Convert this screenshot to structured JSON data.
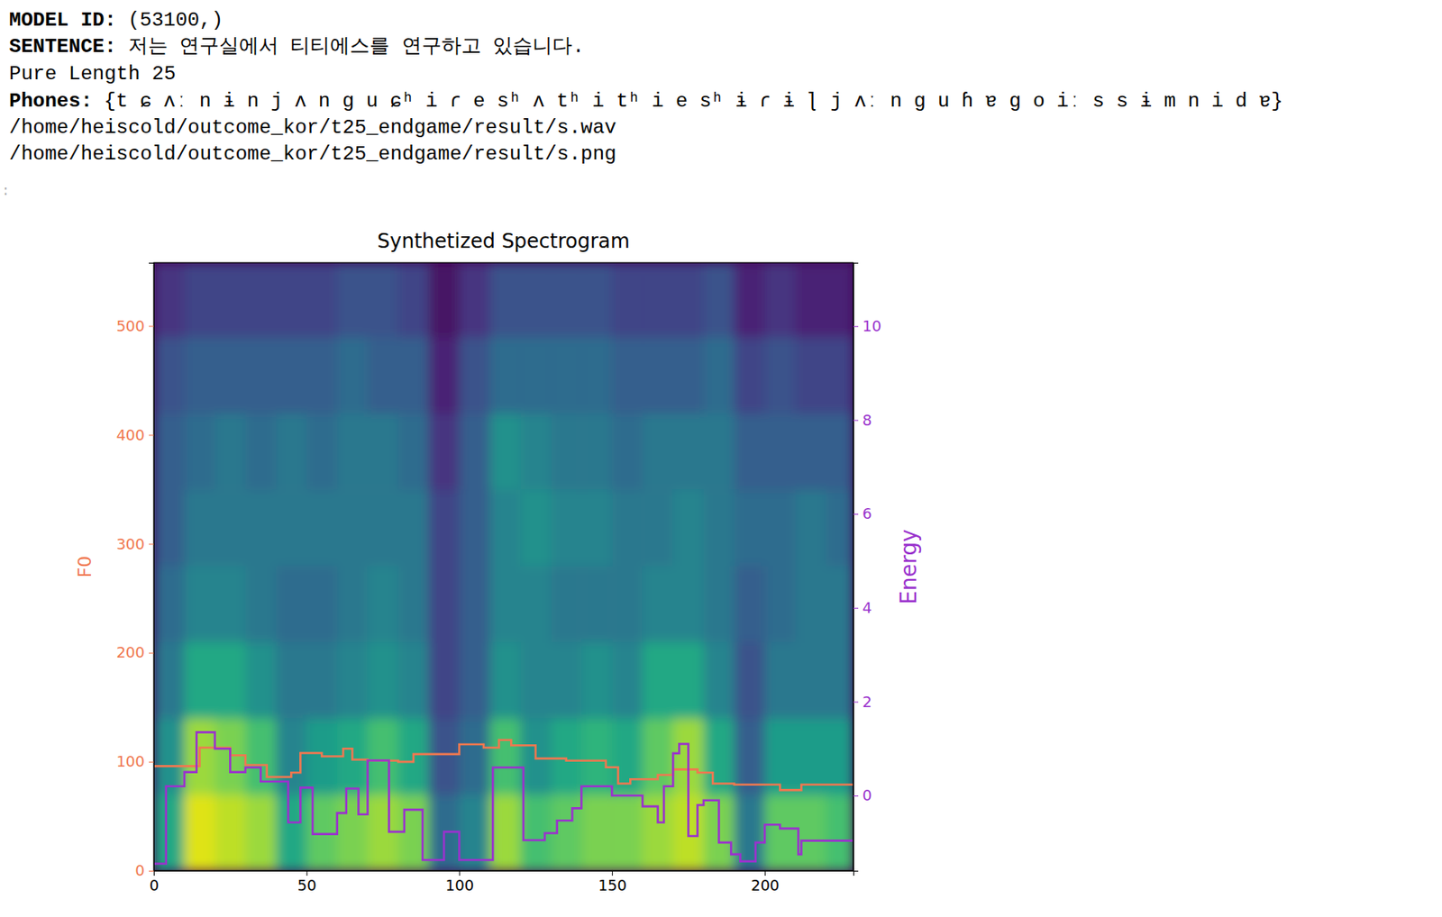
{
  "output_lines": [
    {
      "label": "MODEL ID:",
      "text": "(53100,)"
    },
    {
      "label": "SENTENCE:",
      "text": "저는 연구실에서 티티에스를 연구하고 있습니다."
    },
    {
      "text": "Pure Length 25"
    },
    {
      "label": "Phones:",
      "text": "{t ɕ ʌː n ɨ n j ʌ n g u ɕʰ i ɾ e sʰ ʌ tʰ i tʰ i e sʰ ɨ ɾ ɨ ɭ j ʌː n g u ɦ ɐ g o iː s s ɨ m n i d ɐ}"
    },
    {
      "text": "/home/heiscold/outcome_kor/t25_endgame/result/s.wav"
    },
    {
      "text": "/home/heiscold/outcome_kor/t25_endgame/result/s.png"
    }
  ],
  "prompt_marker": ":",
  "chart_data": {
    "type": "spectrogram",
    "title": "Synthetized Spectrogram",
    "ylabel": "F0",
    "y2label": "Energy",
    "xlim": [
      0,
      229
    ],
    "xticks": [
      0,
      50,
      100,
      150,
      200
    ],
    "ylim": [
      0,
      558
    ],
    "yticks": [
      0,
      100,
      200,
      300,
      400,
      500
    ],
    "y2lim": [
      -1.6,
      11.35
    ],
    "y2ticks": [
      0,
      2,
      4,
      6,
      8,
      10
    ],
    "spectrogram": {
      "x_edges": [
        0,
        10,
        20,
        30,
        40,
        50,
        60,
        70,
        80,
        90,
        100,
        110,
        120,
        130,
        140,
        150,
        160,
        170,
        180,
        190,
        200,
        210,
        220,
        229
      ],
      "y_edges": [
        0,
        70,
        140,
        210,
        280,
        350,
        420,
        490,
        558
      ],
      "color_range": [
        0,
        1
      ],
      "values": [
        [
          0.6,
          0.5,
          0.4,
          0.35,
          0.3,
          0.3,
          0.25,
          0.15
        ],
        [
          0.95,
          0.85,
          0.6,
          0.45,
          0.4,
          0.35,
          0.3,
          0.2
        ],
        [
          0.9,
          0.8,
          0.6,
          0.45,
          0.4,
          0.4,
          0.3,
          0.2
        ],
        [
          0.85,
          0.7,
          0.5,
          0.4,
          0.4,
          0.35,
          0.3,
          0.2
        ],
        [
          0.6,
          0.45,
          0.4,
          0.35,
          0.4,
          0.4,
          0.3,
          0.2
        ],
        [
          0.75,
          0.55,
          0.4,
          0.35,
          0.4,
          0.35,
          0.3,
          0.2
        ],
        [
          0.8,
          0.6,
          0.45,
          0.4,
          0.4,
          0.4,
          0.35,
          0.25
        ],
        [
          0.85,
          0.7,
          0.5,
          0.45,
          0.4,
          0.4,
          0.3,
          0.25
        ],
        [
          0.8,
          0.6,
          0.45,
          0.4,
          0.4,
          0.35,
          0.3,
          0.2
        ],
        [
          0.35,
          0.25,
          0.2,
          0.2,
          0.2,
          0.15,
          0.1,
          0.05
        ],
        [
          0.45,
          0.35,
          0.3,
          0.3,
          0.3,
          0.3,
          0.25,
          0.15
        ],
        [
          0.85,
          0.7,
          0.5,
          0.45,
          0.45,
          0.5,
          0.35,
          0.25
        ],
        [
          0.7,
          0.5,
          0.45,
          0.45,
          0.5,
          0.45,
          0.35,
          0.25
        ],
        [
          0.75,
          0.6,
          0.45,
          0.4,
          0.45,
          0.4,
          0.35,
          0.25
        ],
        [
          0.8,
          0.65,
          0.5,
          0.4,
          0.45,
          0.4,
          0.35,
          0.25
        ],
        [
          0.8,
          0.6,
          0.45,
          0.4,
          0.4,
          0.35,
          0.3,
          0.2
        ],
        [
          0.85,
          0.75,
          0.6,
          0.45,
          0.4,
          0.4,
          0.3,
          0.2
        ],
        [
          0.9,
          0.85,
          0.6,
          0.45,
          0.45,
          0.4,
          0.3,
          0.2
        ],
        [
          0.8,
          0.6,
          0.45,
          0.4,
          0.4,
          0.4,
          0.35,
          0.25
        ],
        [
          0.4,
          0.3,
          0.25,
          0.3,
          0.35,
          0.3,
          0.2,
          0.1
        ],
        [
          0.75,
          0.55,
          0.4,
          0.35,
          0.35,
          0.3,
          0.25,
          0.15
        ],
        [
          0.75,
          0.55,
          0.4,
          0.4,
          0.4,
          0.3,
          0.2,
          0.1
        ],
        [
          0.7,
          0.55,
          0.4,
          0.4,
          0.35,
          0.3,
          0.2,
          0.1
        ]
      ]
    },
    "series": [
      {
        "type": "line",
        "axis": "y",
        "color": "#f07850",
        "line_style": "steps",
        "x": [
          0,
          15,
          25,
          30,
          37,
          45,
          48,
          55,
          62,
          65,
          70,
          80,
          85,
          100,
          108,
          113,
          117,
          125,
          135,
          148,
          152,
          156,
          165,
          170,
          178,
          183,
          190,
          205,
          212,
          229
        ],
        "values": [
          96,
          113,
          106,
          97,
          86,
          90,
          108,
          105,
          112,
          102,
          101,
          100,
          107,
          116,
          113,
          120,
          115,
          103,
          101,
          95,
          80,
          84,
          88,
          93,
          90,
          80,
          79,
          74,
          79,
          79
        ]
      },
      {
        "type": "line",
        "axis": "y2",
        "color": "#9a32cd",
        "line_style": "steps",
        "x": [
          0,
          4,
          10,
          14,
          20,
          25,
          30,
          35,
          44,
          48,
          52,
          60,
          63,
          67,
          70,
          77,
          82,
          88,
          95,
          100,
          111,
          121,
          128,
          132,
          137,
          140,
          150,
          160,
          165,
          167,
          170,
          172,
          175,
          178,
          180,
          185,
          189,
          192,
          197,
          200,
          205,
          211,
          212,
          229
        ],
        "values": [
          -1.45,
          0.2,
          0.5,
          1.35,
          1.0,
          0.5,
          0.6,
          0.3,
          -0.57,
          0.17,
          -0.82,
          -0.37,
          0.15,
          -0.4,
          0.75,
          -0.77,
          -0.3,
          -1.37,
          -0.77,
          -1.37,
          0.6,
          -0.95,
          -0.8,
          -0.53,
          -0.27,
          0.2,
          0.0,
          -0.23,
          -0.57,
          0.2,
          0.9,
          1.1,
          -0.86,
          -0.2,
          -0.1,
          -1.0,
          -1.25,
          -1.4,
          -1.0,
          -0.62,
          -0.7,
          -1.25,
          -0.96,
          -0.96
        ]
      }
    ]
  }
}
